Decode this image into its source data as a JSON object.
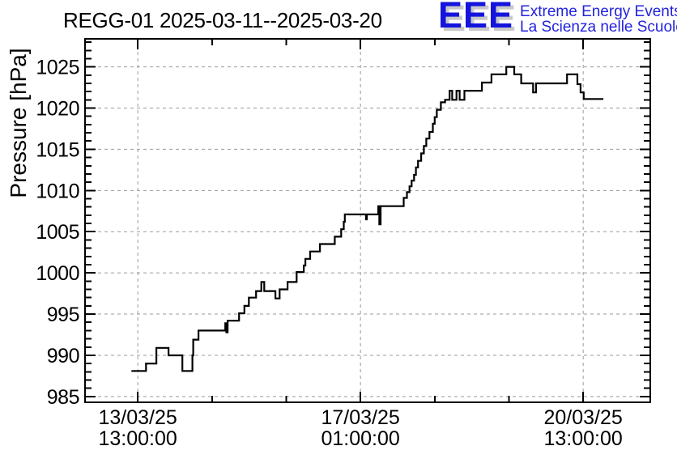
{
  "header": {
    "title": "REGG-01 2025-03-11--2025-03-20"
  },
  "logo": {
    "mark": "EEE",
    "line1": "Extreme Energy Events",
    "line2": "La Scienza nelle Scuole",
    "mark_color": "#1414dd",
    "text_color": "#2323dd",
    "shadow_color": "#c9c9c9"
  },
  "chart_data": {
    "type": "line",
    "style": "step",
    "title": "REGG-01 2025-03-11--2025-03-20",
    "xlabel": "",
    "ylabel": "Pressure [hPa]",
    "grid": true,
    "legend": "none",
    "line_color": "#000000",
    "grid_color": "#9a9a9a",
    "frame_color": "#000000",
    "x_unit": "hours since 13/03/25 13:00:00",
    "x_range_hours": [
      -19.9,
      193.3
    ],
    "y_range": [
      984.3,
      1028.4
    ],
    "x_major_ticks": [
      {
        "hours": 0,
        "label_line1": "13/03/25",
        "label_line2": "13:00:00"
      },
      {
        "hours": 84,
        "label_line1": "17/03/25",
        "label_line2": "01:00:00"
      },
      {
        "hours": 168,
        "label_line1": "20/03/25",
        "label_line2": "13:00:00"
      }
    ],
    "x_minor_ticks_hours": [
      28,
      56,
      112,
      140
    ],
    "y_major_ticks": [
      985,
      990,
      995,
      1000,
      1005,
      1010,
      1015,
      1020,
      1025
    ],
    "y_minor_step": 1,
    "series": [
      {
        "name": "pressure",
        "end_hours": 175.6,
        "points": [
          [
            -2.4,
            988.1
          ],
          [
            3.1,
            989.0
          ],
          [
            7.0,
            990.9
          ],
          [
            11.6,
            990.0
          ],
          [
            16.8,
            988.1
          ],
          [
            20.6,
            990.0
          ],
          [
            20.9,
            991.9
          ],
          [
            22.9,
            993.0
          ],
          [
            33.0,
            993.9
          ],
          [
            33.4,
            992.8
          ],
          [
            33.9,
            994.2
          ],
          [
            38.2,
            995.1
          ],
          [
            40.2,
            996.0
          ],
          [
            41.9,
            997.0
          ],
          [
            44.6,
            997.8
          ],
          [
            46.6,
            998.9
          ],
          [
            47.7,
            997.8
          ],
          [
            51.9,
            996.9
          ],
          [
            53.5,
            998.0
          ],
          [
            56.5,
            998.9
          ],
          [
            59.9,
            1000.1
          ],
          [
            62.6,
            1000.9
          ],
          [
            63.2,
            1001.7
          ],
          [
            65.0,
            1002.6
          ],
          [
            68.7,
            1003.5
          ],
          [
            74.3,
            1004.4
          ],
          [
            76.7,
            1005.3
          ],
          [
            77.7,
            1006.2
          ],
          [
            78.1,
            1007.1
          ],
          [
            86.1,
            1006.5
          ],
          [
            86.4,
            1007.1
          ],
          [
            90.7,
            1008.1
          ],
          [
            91.1,
            1005.9
          ],
          [
            91.6,
            1008.1
          ],
          [
            100.3,
            1009.1
          ],
          [
            101.5,
            1009.8
          ],
          [
            102.5,
            1010.5
          ],
          [
            103.3,
            1011.2
          ],
          [
            104.2,
            1011.9
          ],
          [
            104.9,
            1012.8
          ],
          [
            105.7,
            1013.6
          ],
          [
            106.9,
            1014.5
          ],
          [
            107.9,
            1015.4
          ],
          [
            108.8,
            1016.3
          ],
          [
            110.0,
            1017.1
          ],
          [
            111.3,
            1018.1
          ],
          [
            112.0,
            1018.9
          ],
          [
            112.8,
            1019.8
          ],
          [
            114.3,
            1020.7
          ],
          [
            115.9,
            1021.0
          ],
          [
            117.6,
            1022.1
          ],
          [
            118.6,
            1021.0
          ],
          [
            120.2,
            1022.1
          ],
          [
            121.4,
            1021.0
          ],
          [
            123.2,
            1022.1
          ],
          [
            129.8,
            1023.1
          ],
          [
            133.4,
            1024.1
          ],
          [
            139.0,
            1025.0
          ],
          [
            142.0,
            1024.1
          ],
          [
            144.6,
            1023.0
          ],
          [
            149.1,
            1021.9
          ],
          [
            150.2,
            1023.0
          ],
          [
            161.9,
            1024.1
          ],
          [
            165.8,
            1022.9
          ],
          [
            167.0,
            1021.9
          ],
          [
            168.2,
            1021.1
          ]
        ]
      }
    ]
  }
}
